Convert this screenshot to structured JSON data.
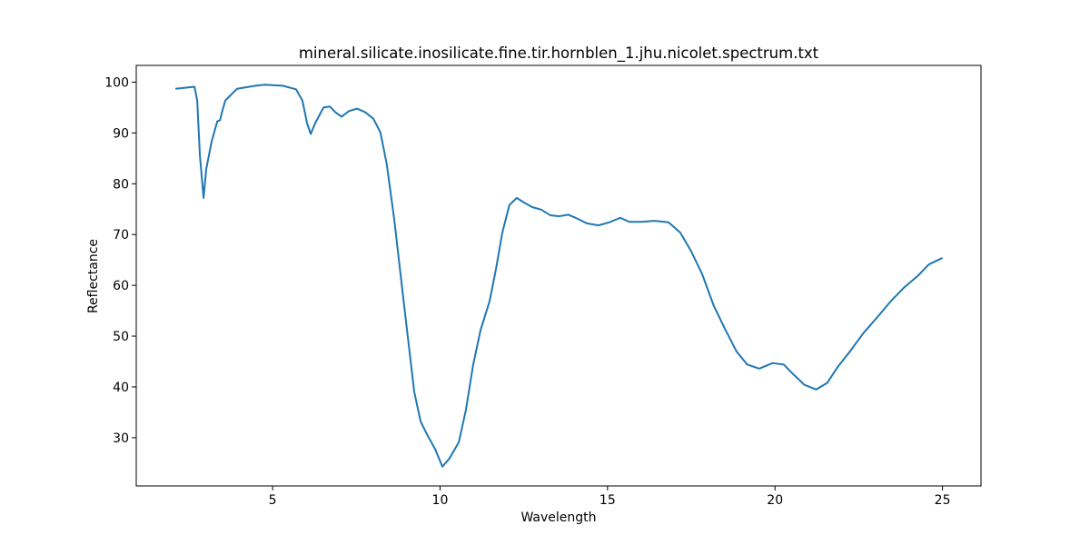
{
  "chart_data": {
    "type": "line",
    "title": "mineral.silicate.inosilicate.fine.tir.hornblen_1.jhu.nicolet.spectrum.txt",
    "x_label": "Wavelength",
    "y_label": "Reflectance",
    "xlim": [
      0.93,
      26.15
    ],
    "ylim": [
      20.5,
      103.3
    ],
    "xticks": [
      5,
      10,
      15,
      20,
      25
    ],
    "yticks": [
      30,
      40,
      50,
      60,
      70,
      80,
      90,
      100
    ],
    "series": [
      {
        "color": "#1f77b4",
        "x": [
          2.1,
          2.67,
          2.75,
          2.83,
          2.94,
          3.02,
          3.18,
          3.35,
          3.43,
          3.51,
          3.59,
          3.94,
          4.49,
          4.76,
          5.3,
          5.7,
          5.89,
          6.03,
          6.14,
          6.27,
          6.52,
          6.71,
          6.87,
          7.06,
          7.28,
          7.52,
          7.76,
          8.01,
          8.22,
          8.41,
          8.63,
          8.85,
          9.04,
          9.23,
          9.42,
          9.63,
          9.85,
          10.07,
          10.28,
          10.56,
          10.77,
          10.99,
          11.21,
          11.48,
          11.67,
          11.86,
          12.07,
          12.29,
          12.51,
          12.75,
          13.02,
          13.29,
          13.56,
          13.83,
          14.11,
          14.38,
          14.73,
          15.05,
          15.38,
          15.65,
          16.0,
          16.41,
          16.82,
          17.17,
          17.49,
          17.82,
          18.17,
          18.5,
          18.85,
          19.17,
          19.53,
          19.93,
          20.26,
          20.53,
          20.88,
          21.23,
          21.56,
          21.88,
          22.24,
          22.64,
          23.05,
          23.46,
          23.86,
          24.27,
          24.59,
          25.0
        ],
        "values": [
          98.7,
          99.1,
          96.4,
          85.6,
          77.2,
          82.9,
          88.3,
          92.3,
          92.5,
          94.6,
          96.4,
          98.7,
          99.3,
          99.5,
          99.3,
          98.6,
          96.4,
          91.9,
          89.8,
          91.9,
          95.0,
          95.2,
          94.1,
          93.2,
          94.3,
          94.8,
          94.1,
          92.8,
          90.1,
          83.8,
          73.1,
          60.5,
          49.7,
          39.0,
          33.2,
          30.4,
          27.8,
          24.3,
          25.9,
          29.1,
          35.4,
          44.4,
          51.2,
          56.9,
          63.2,
          70.4,
          75.8,
          77.2,
          76.3,
          75.4,
          74.9,
          73.8,
          73.6,
          73.9,
          73.1,
          72.2,
          71.8,
          72.4,
          73.3,
          72.5,
          72.5,
          72.7,
          72.4,
          70.4,
          66.8,
          62.3,
          56.0,
          51.5,
          47.0,
          44.4,
          43.6,
          44.7,
          44.4,
          42.6,
          40.4,
          39.5,
          40.8,
          44.0,
          47.0,
          50.6,
          53.7,
          56.9,
          59.6,
          61.9,
          64.1,
          65.4
        ]
      }
    ]
  }
}
